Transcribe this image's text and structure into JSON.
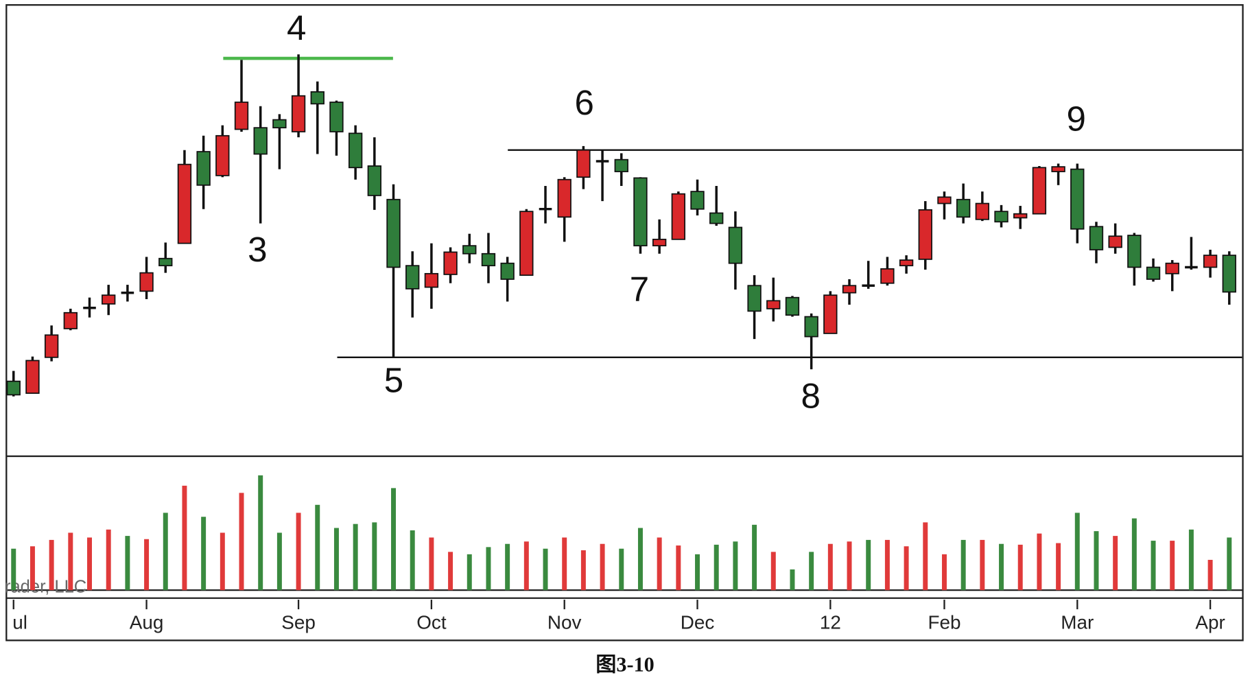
{
  "chart_data": {
    "type": "candlestick",
    "caption": "图3-10",
    "watermark": "rader, LLC",
    "categories": [
      "ul",
      null,
      null,
      null,
      null,
      null,
      null,
      "Aug",
      null,
      null,
      null,
      null,
      null,
      null,
      null,
      "Sep",
      null,
      null,
      null,
      null,
      null,
      null,
      "Oct",
      null,
      null,
      null,
      null,
      null,
      null,
      "Nov",
      null,
      null,
      null,
      null,
      null,
      null,
      "Dec",
      null,
      null,
      null,
      null,
      null,
      null,
      "12",
      null,
      null,
      null,
      null,
      null,
      "Feb",
      null,
      null,
      null,
      null,
      null,
      null,
      "Mar",
      null,
      null,
      null,
      null,
      null,
      null,
      "Apr",
      null
    ],
    "open": [
      92,
      77,
      122,
      158,
      184,
      189,
      203,
      205,
      246,
      265,
      380,
      350,
      408,
      410,
      420,
      405,
      455,
      442,
      403,
      362,
      320,
      237,
      210,
      226,
      262,
      252,
      240,
      225,
      308,
      298,
      348,
      368,
      370,
      347,
      262,
      270,
      330,
      303,
      285,
      212,
      183,
      197,
      173,
      152,
      203,
      212,
      215,
      237,
      245,
      315,
      320,
      295,
      305,
      297,
      302,
      355,
      358,
      286,
      260,
      275,
      235,
      227,
      235,
      235,
      250
    ],
    "high": [
      105,
      123,
      162,
      183,
      197,
      213,
      213,
      248,
      266,
      382,
      400,
      413,
      495,
      437,
      427,
      502,
      468,
      444,
      413,
      398,
      339,
      255,
      265,
      260,
      277,
      278,
      248,
      308,
      337,
      348,
      387,
      382,
      378,
      348,
      295,
      330,
      345,
      337,
      305,
      225,
      222,
      199,
      177,
      205,
      220,
      243,
      248,
      250,
      318,
      330,
      340,
      330,
      313,
      312,
      362,
      365,
      365,
      292,
      290,
      278,
      246,
      244,
      273,
      257,
      255
    ],
    "low": [
      73,
      77,
      117,
      156,
      172,
      175,
      192,
      195,
      228,
      265,
      308,
      348,
      405,
      290,
      358,
      398,
      377,
      375,
      345,
      307,
      122,
      172,
      183,
      215,
      240,
      215,
      192,
      225,
      290,
      267,
      333,
      318,
      337,
      252,
      252,
      270,
      300,
      287,
      207,
      145,
      167,
      173,
      107,
      152,
      188,
      208,
      212,
      227,
      232,
      295,
      290,
      293,
      285,
      283,
      302,
      338,
      265,
      240,
      252,
      212,
      217,
      205,
      232,
      222,
      188
    ],
    "close": [
      75,
      118,
      150,
      178,
      184,
      200,
      203,
      228,
      237,
      364,
      338,
      400,
      442,
      377,
      410,
      450,
      440,
      405,
      360,
      325,
      235,
      208,
      227,
      254,
      252,
      237,
      220,
      305,
      308,
      345,
      382,
      368,
      355,
      262,
      270,
      327,
      308,
      290,
      240,
      180,
      193,
      175,
      148,
      200,
      212,
      212,
      233,
      244,
      307,
      323,
      298,
      315,
      292,
      302,
      360,
      361,
      283,
      257,
      274,
      235,
      220,
      240,
      235,
      250,
      204
    ],
    "up_color": "#d9282b",
    "down_color": "#2f7d3b",
    "flat_color": "#111111",
    "ylim": [
      0,
      562
    ],
    "reference_lines": [
      {
        "value": 382,
        "color": "#111111"
      },
      {
        "value": 122,
        "color": "#111111"
      },
      {
        "value": 497,
        "color": "#4cb84c"
      }
    ],
    "annotations": [
      "4",
      "3",
      "5",
      "6",
      "7",
      "8",
      "9"
    ],
    "volume": {
      "ylim": [
        0,
        165
      ],
      "values": [
        52,
        55,
        63,
        72,
        66,
        76,
        68,
        64,
        97,
        131,
        92,
        72,
        122,
        144,
        72,
        97,
        107,
        78,
        83,
        85,
        128,
        75,
        66,
        48,
        45,
        54,
        58,
        61,
        52,
        66,
        50,
        58,
        52,
        78,
        66,
        56,
        45,
        57,
        61,
        82,
        48,
        26,
        48,
        58,
        61,
        63,
        63,
        55,
        85,
        45,
        63,
        63,
        58,
        57,
        71,
        59,
        97,
        74,
        68,
        90,
        62,
        62,
        76,
        38,
        66
      ],
      "colors": [
        "#3a8a3f",
        "#e03a3a",
        "#e03a3a",
        "#e03a3a",
        "#e03a3a",
        "#e03a3a",
        "#3a8a3f",
        "#e03a3a",
        "#3a8a3f",
        "#e03a3a",
        "#3a8a3f",
        "#e03a3a",
        "#e03a3a",
        "#3a8a3f",
        "#3a8a3f",
        "#e03a3a",
        "#3a8a3f",
        "#3a8a3f",
        "#3a8a3f",
        "#3a8a3f",
        "#3a8a3f",
        "#3a8a3f",
        "#e03a3a",
        "#e03a3a",
        "#3a8a3f",
        "#3a8a3f",
        "#3a8a3f",
        "#e03a3a",
        "#3a8a3f",
        "#e03a3a",
        "#e03a3a",
        "#e03a3a",
        "#3a8a3f",
        "#3a8a3f",
        "#e03a3a",
        "#e03a3a",
        "#3a8a3f",
        "#3a8a3f",
        "#3a8a3f",
        "#3a8a3f",
        "#e03a3a",
        "#3a8a3f",
        "#3a8a3f",
        "#e03a3a",
        "#e03a3a",
        "#3a8a3f",
        "#e03a3a",
        "#e03a3a",
        "#e03a3a",
        "#e03a3a",
        "#3a8a3f",
        "#e03a3a",
        "#3a8a3f",
        "#e03a3a",
        "#e03a3a",
        "#e03a3a",
        "#3a8a3f",
        "#3a8a3f",
        "#e03a3a",
        "#3a8a3f",
        "#3a8a3f",
        "#e03a3a",
        "#3a8a3f",
        "#e03a3a",
        "#3a8a3f"
      ]
    }
  }
}
